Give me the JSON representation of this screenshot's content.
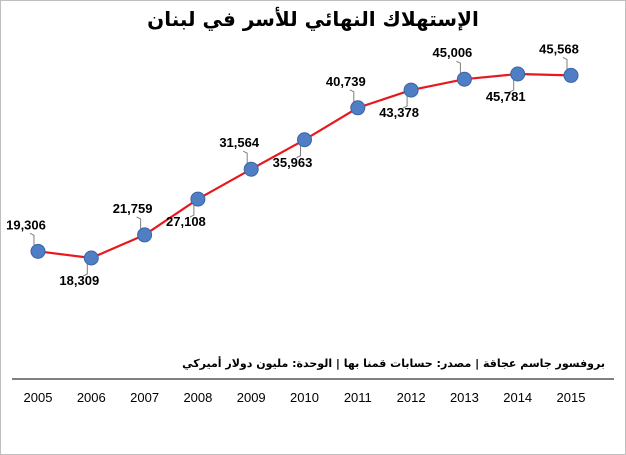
{
  "chart_data": {
    "type": "line",
    "title": "الإستهلاك النهائي للأسر في لبنان",
    "caption": "بروفسور جاسم عجاقة | مصدر: حسابات قمنا بها | الوحدة: مليون دولار أميركي",
    "categories": [
      "2005",
      "2006",
      "2007",
      "2008",
      "2009",
      "2010",
      "2011",
      "2012",
      "2013",
      "2014",
      "2015"
    ],
    "values": [
      19306,
      18309,
      21759,
      27108,
      31564,
      35963,
      40739,
      43378,
      45006,
      45781,
      45568
    ],
    "data_labels": [
      "19,306",
      "18,309",
      "21,759",
      "27,108",
      "31,564",
      "35,963",
      "40,739",
      "43,378",
      "45,006",
      "45,781",
      "45,568"
    ],
    "label_placement": [
      "above",
      "below",
      "above",
      "below",
      "above",
      "below",
      "above",
      "below",
      "above",
      "below",
      "above"
    ],
    "xlabel": "",
    "ylabel": "",
    "ylim": [
      16000,
      49000
    ],
    "grid": false,
    "legend": "none",
    "colors": {
      "line": "#e8191e",
      "marker": "#4f7ec4",
      "marker_edge": "#3a64a6",
      "leader": "#7f7f7f",
      "axis": "#000000"
    }
  }
}
